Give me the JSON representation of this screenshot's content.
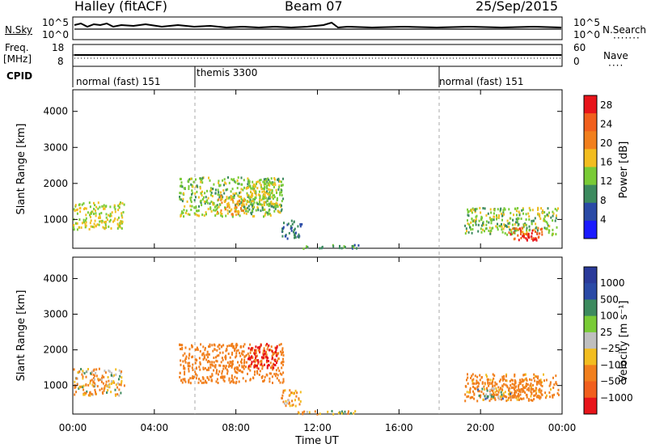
{
  "header": {
    "station": "Halley (fitACF)",
    "beam": "Beam 07",
    "date": "25/Sep/2015"
  },
  "left_labels": {
    "nsky": "N.Sky",
    "freq": "Freq.",
    "freq_unit": "[MHz]",
    "cpid": "CPID"
  },
  "right_labels": {
    "nsearch": "N.Search",
    "nave": "Nave"
  },
  "nsky_ticks": {
    "top": "10^5",
    "bottom": "10^0"
  },
  "freq_ticks": {
    "top": "18",
    "bottom": "8"
  },
  "nave_ticks": {
    "top": "60",
    "bottom": "0"
  },
  "nsearch_ticks": {
    "top": "10^5",
    "bottom": "10^0"
  },
  "cpid_segments": [
    {
      "label": "normal (fast) 151",
      "start_hour": 0
    },
    {
      "label": "themis 3300",
      "start_hour": 6
    },
    {
      "label": "normal (fast) 151",
      "start_hour": 18
    }
  ],
  "x_axis": {
    "label": "Time UT",
    "ticks": [
      "00:00",
      "04:00",
      "08:00",
      "12:00",
      "16:00",
      "20:00",
      "00:00"
    ],
    "range_hours": [
      0,
      24
    ]
  },
  "colors": {
    "red": "#e8141a",
    "orange": "#f17f1d",
    "yellow": "#f2bd20",
    "green": "#79cb36",
    "teal": "#3c8a5e",
    "blue": "#2a4aa6",
    "grey": "#bfbfbf"
  },
  "chart_data": [
    {
      "type": "heatmap",
      "name": "power",
      "ylabel": "Slant Range [km]",
      "yticks": [
        "1000",
        "2000",
        "3000",
        "4000"
      ],
      "ylim": [
        200,
        4600
      ],
      "xlim": [
        0,
        24
      ],
      "colorbar": {
        "label": "Power [dB]",
        "ticks": [
          "4",
          "8",
          "12",
          "16",
          "20",
          "24",
          "28"
        ],
        "range": [
          0,
          30
        ]
      },
      "features": [
        {
          "t0": 0.0,
          "t1": 2.5,
          "r0": 750,
          "r1": 1500,
          "value": 14
        },
        {
          "t0": 5.2,
          "t1": 10.3,
          "r0": 1100,
          "r1": 2200,
          "value": 12
        },
        {
          "t0": 7.0,
          "t1": 8.5,
          "r0": 1150,
          "r1": 1700,
          "value": 18
        },
        {
          "t0": 8.5,
          "t1": 10.0,
          "r0": 1400,
          "r1": 2100,
          "value": 14
        },
        {
          "t0": 10.2,
          "t1": 11.2,
          "r0": 500,
          "r1": 1000,
          "value": 6
        },
        {
          "t0": 11.0,
          "t1": 14.0,
          "r0": 220,
          "r1": 320,
          "value": 8
        },
        {
          "t0": 19.2,
          "t1": 23.8,
          "r0": 600,
          "r1": 1350,
          "value": 12
        },
        {
          "t0": 21.3,
          "t1": 23.0,
          "r0": 480,
          "r1": 800,
          "value": 24
        },
        {
          "t0": 21.8,
          "t1": 22.8,
          "r0": 450,
          "r1": 650,
          "value": 28
        }
      ]
    },
    {
      "type": "heatmap",
      "name": "velocity",
      "ylabel": "Slant Range [km]",
      "yticks": [
        "1000",
        "2000",
        "3000",
        "4000"
      ],
      "ylim": [
        200,
        4600
      ],
      "xlim": [
        0,
        24
      ],
      "colorbar": {
        "label": "Velocity [m s⁻¹]",
        "ticks": [
          "1000",
          "500",
          "100",
          "25",
          "−25",
          "−100",
          "−500",
          "−1000"
        ],
        "levels": [
          "1000",
          "500",
          "100",
          "25",
          "-25",
          "-100",
          "-500",
          "-1000"
        ]
      },
      "features": [
        {
          "t0": 0.0,
          "t1": 2.5,
          "r0": 750,
          "r1": 1500,
          "value": -100
        },
        {
          "t0": 5.2,
          "t1": 10.3,
          "r0": 1100,
          "r1": 2200,
          "value": -300
        },
        {
          "t0": 8.5,
          "t1": 10.0,
          "r0": 1500,
          "r1": 2200,
          "value": -600
        },
        {
          "t0": 10.2,
          "t1": 11.2,
          "r0": 450,
          "r1": 900,
          "value": -150
        },
        {
          "t0": 11.0,
          "t1": 14.0,
          "r0": 220,
          "r1": 320,
          "value": -50
        },
        {
          "t0": 19.2,
          "t1": 23.8,
          "r0": 600,
          "r1": 1350,
          "value": -200
        },
        {
          "t0": 19.8,
          "t1": 21.5,
          "r0": 650,
          "r1": 950,
          "value": 0
        },
        {
          "t0": 21.3,
          "t1": 23.0,
          "r0": 700,
          "r1": 1200,
          "value": -300
        }
      ]
    }
  ]
}
